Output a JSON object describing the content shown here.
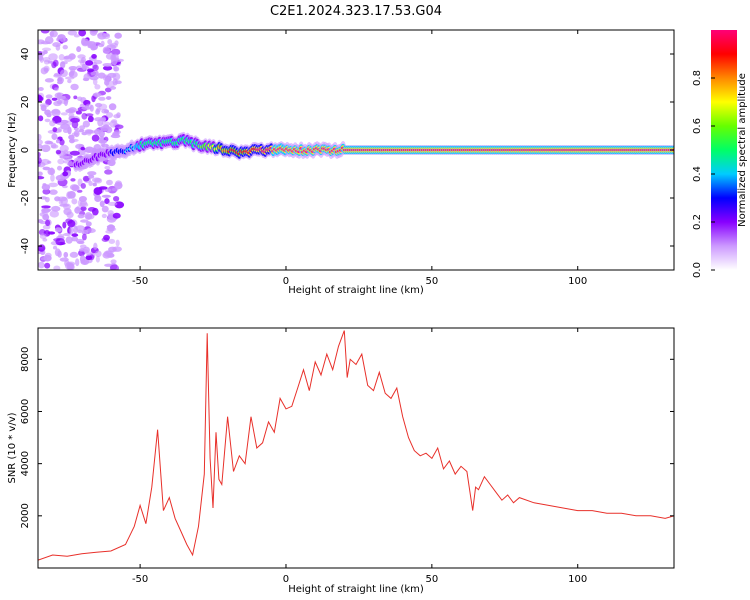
{
  "figure": {
    "title": "C2E1.2024.323.17.53.G04"
  },
  "chart_data": [
    {
      "type": "heatmap",
      "xlabel": "Height of straight line (km)",
      "ylabel": "Frequency (Hz)",
      "xlim": [
        -85,
        133
      ],
      "ylim": [
        -50,
        50
      ],
      "x_ticks": [
        -50,
        0,
        50,
        100
      ],
      "y_ticks": [
        -40,
        -20,
        0,
        20,
        40
      ],
      "colorbar": {
        "label": "Normalized spectral amplitude",
        "range": [
          0,
          1
        ],
        "ticks": [
          0.0,
          0.2,
          0.4,
          0.6,
          0.8
        ],
        "colors": [
          "#ffffff",
          "#cc99ff",
          "#8800ff",
          "#0000ff",
          "#00ccff",
          "#00ff66",
          "#66ff00",
          "#ffff00",
          "#ff8800",
          "#ff0000",
          "#ff0077"
        ]
      },
      "noise_region_x": [
        -85,
        -57
      ],
      "ridge": {
        "x": [
          -72,
          -65,
          -60,
          -55,
          -50,
          -45,
          -40,
          -35,
          -30,
          -25,
          -20,
          -15,
          -10,
          -5,
          0,
          5,
          10,
          20,
          30,
          60,
          100,
          133
        ],
        "freq": [
          -6,
          -3,
          -1,
          0,
          2,
          3,
          3,
          4,
          2,
          1,
          0,
          -1,
          0,
          0,
          0,
          0,
          0,
          0,
          0,
          0,
          0,
          0
        ],
        "amplitude": [
          0.15,
          0.2,
          0.25,
          0.35,
          0.45,
          0.5,
          0.55,
          0.5,
          0.55,
          0.7,
          0.85,
          0.9,
          0.95,
          1.0,
          1.0,
          1.0,
          1.0,
          1.0,
          1.0,
          1.0,
          1.0,
          1.0
        ]
      }
    },
    {
      "type": "line",
      "xlabel": "Height of straight line (km)",
      "ylabel": "SNR (10 * v/v)",
      "xlim": [
        -85,
        133
      ],
      "ylim": [
        0,
        9200
      ],
      "x_ticks": [
        -50,
        0,
        50,
        100
      ],
      "y_ticks": [
        2000,
        4000,
        6000,
        8000
      ],
      "series": [
        {
          "color": "#e8302a",
          "x": [
            -85,
            -80,
            -75,
            -70,
            -65,
            -60,
            -55,
            -52,
            -50,
            -48,
            -46,
            -44,
            -42,
            -40,
            -38,
            -36,
            -34,
            -32,
            -30,
            -28,
            -27,
            -26,
            -25,
            -24,
            -23,
            -22,
            -20,
            -18,
            -16,
            -14,
            -12,
            -10,
            -8,
            -6,
            -4,
            -2,
            0,
            2,
            4,
            6,
            8,
            10,
            12,
            14,
            16,
            18,
            20,
            21,
            22,
            24,
            26,
            28,
            30,
            32,
            34,
            36,
            38,
            40,
            42,
            44,
            46,
            48,
            50,
            52,
            54,
            56,
            58,
            60,
            62,
            64,
            65,
            66,
            68,
            70,
            72,
            74,
            76,
            78,
            80,
            85,
            90,
            95,
            100,
            105,
            110,
            115,
            120,
            125,
            130,
            133
          ],
          "y": [
            300,
            500,
            450,
            550,
            600,
            650,
            900,
            1600,
            2400,
            1700,
            3100,
            5300,
            2200,
            2700,
            1900,
            1400,
            900,
            500,
            1600,
            3600,
            9000,
            4200,
            2300,
            5200,
            3400,
            3200,
            5800,
            3700,
            4300,
            4000,
            5800,
            4600,
            4800,
            5600,
            5200,
            6500,
            6100,
            6200,
            6900,
            7600,
            6800,
            7900,
            7400,
            8200,
            7600,
            8500,
            9100,
            7300,
            8000,
            7800,
            8200,
            7000,
            6800,
            7500,
            6700,
            6500,
            6900,
            5800,
            5000,
            4500,
            4300,
            4400,
            4200,
            4600,
            3800,
            4100,
            3600,
            3900,
            3700,
            2200,
            3100,
            3000,
            3500,
            3200,
            2900,
            2600,
            2800,
            2500,
            2700,
            2500,
            2400,
            2300,
            2200,
            2200,
            2100,
            2100,
            2000,
            2000,
            1900,
            2000
          ]
        }
      ]
    }
  ]
}
